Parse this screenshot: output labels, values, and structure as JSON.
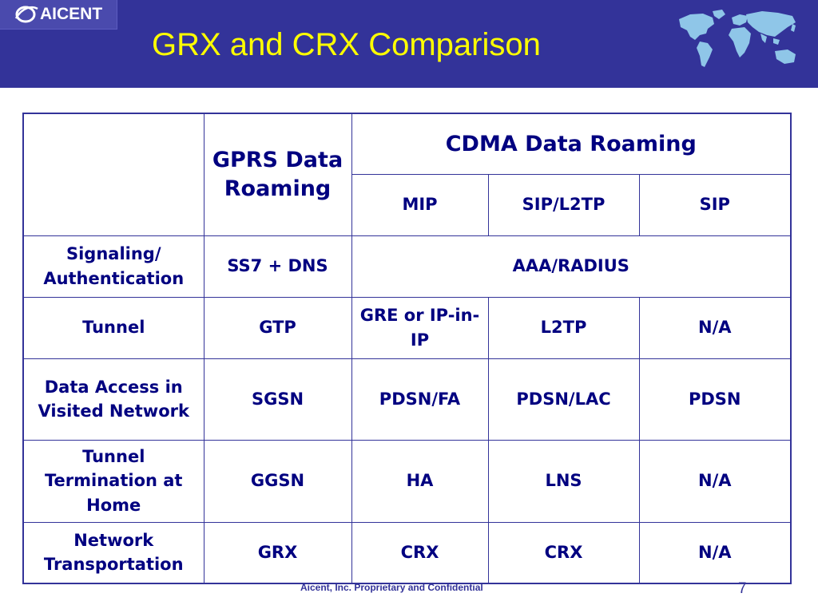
{
  "header": {
    "logo_text": "AICENT",
    "title": "GRX and CRX Comparison",
    "colors": {
      "background": "#333399",
      "title": "#ffff00",
      "map": "#8fc6e8"
    },
    "icons": {
      "logo": "globe-swoosh-logo",
      "map": "world-map-icon"
    }
  },
  "table": {
    "header": {
      "corner": "",
      "gprs": "GPRS Data Roaming",
      "cdma": "CDMA Data Roaming",
      "sub": [
        "MIP",
        "SIP/L2TP",
        "SIP"
      ]
    },
    "rows": [
      {
        "label": "Signaling/ Authentication",
        "gprs": "SS7 + DNS",
        "cdma_merged": "AAA/RADIUS"
      },
      {
        "label": "Tunnel",
        "gprs": "GTP",
        "cells": [
          "GRE or IP-in-IP",
          "L2TP",
          "N/A"
        ]
      },
      {
        "label": "Data Access in Visited Network",
        "gprs": "SGSN",
        "cells": [
          "PDSN/FA",
          "PDSN/LAC",
          "PDSN"
        ]
      },
      {
        "label": "Tunnel Termination at Home",
        "gprs": "GGSN",
        "cells": [
          "HA",
          "LNS",
          "N/A"
        ]
      },
      {
        "label": "Network Transportation",
        "gprs": "GRX",
        "cells": [
          "CRX",
          "CRX",
          "N/A"
        ]
      }
    ],
    "colors": {
      "border": "#333399",
      "text": "#000080"
    }
  },
  "footer": {
    "text": "Aicent, Inc. Proprietary and Confidential",
    "page": "7"
  }
}
